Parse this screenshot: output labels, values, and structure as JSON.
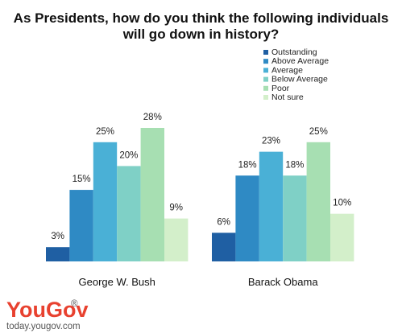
{
  "chart_data": {
    "type": "bar",
    "title": [
      "As Presidents, how do you think the following individuals",
      "will go down in history?"
    ],
    "categories": [
      "George W. Bush",
      "Barack Obama"
    ],
    "series": [
      {
        "name": "Outstanding",
        "values": [
          3,
          6
        ],
        "color": "#1f5fa3"
      },
      {
        "name": "Above Average",
        "values": [
          15,
          18
        ],
        "color": "#2f8ac4"
      },
      {
        "name": "Average",
        "values": [
          25,
          23
        ],
        "color": "#4ab0d6"
      },
      {
        "name": "Below Average",
        "values": [
          20,
          18
        ],
        "color": "#7fd0c6"
      },
      {
        "name": "Poor",
        "values": [
          28,
          25
        ],
        "color": "#a7dfb2"
      },
      {
        "name": "Not sure",
        "values": [
          9,
          10
        ],
        "color": "#d3efca"
      }
    ],
    "ylim": [
      0,
      28
    ],
    "value_suffix": "%",
    "legend_position": "top-right",
    "grid": false
  },
  "branding": {
    "logo_left": "You",
    "logo_right": "Gov",
    "logo_mark": "®",
    "website": "today.yougov.com",
    "logo_color_left": "#e8412f",
    "logo_color_right": "#e8412f"
  }
}
